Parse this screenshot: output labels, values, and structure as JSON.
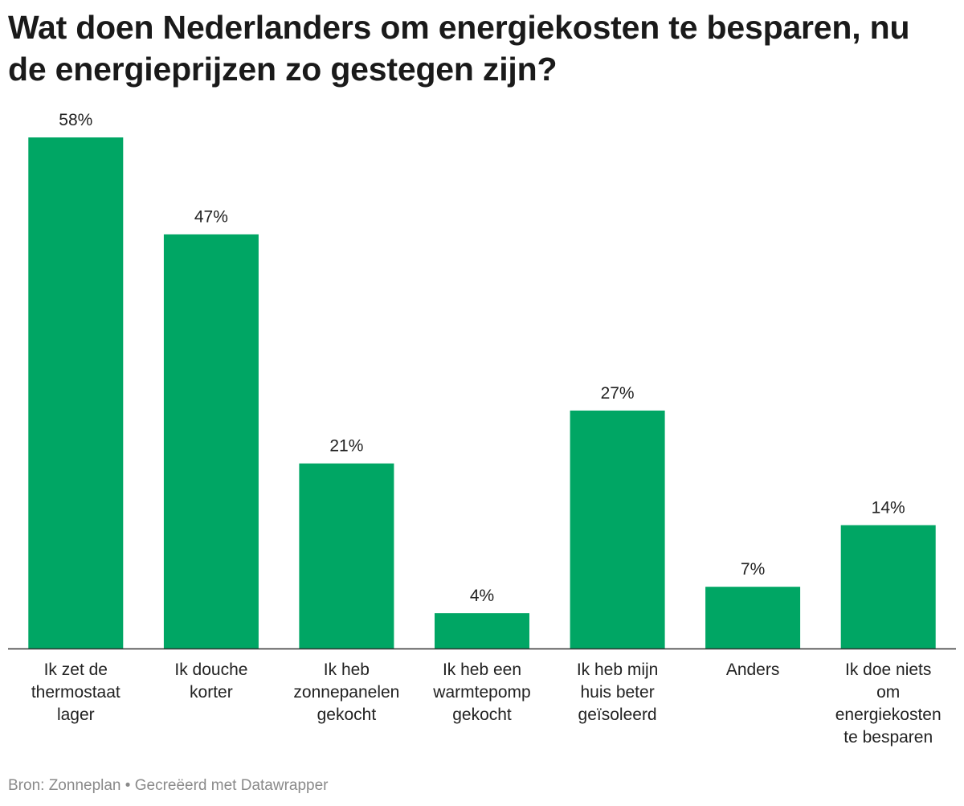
{
  "title": "Wat doen Nederlanders om energiekosten te besparen, nu de energieprijzen zo gestegen zijn?",
  "source": {
    "label": "Bron:",
    "name": "Zonneplan",
    "separator": "•",
    "credit": "Gecreëerd met Datawrapper"
  },
  "colors": {
    "bar": "#00a664",
    "baseline": "#333333"
  },
  "chart_data": {
    "type": "bar",
    "title": "Wat doen Nederlanders om energiekosten te besparen, nu de energieprijzen zo gestegen zijn?",
    "categories": [
      [
        "Ik zet de",
        "thermostaat",
        "lager"
      ],
      [
        "Ik douche",
        "korter"
      ],
      [
        "Ik heb",
        "zonnepanelen",
        "gekocht"
      ],
      [
        "Ik heb een",
        "warmtepomp",
        "gekocht"
      ],
      [
        "Ik heb mijn",
        "huis beter",
        "geïsoleerd"
      ],
      [
        "Anders"
      ],
      [
        "Ik doe niets",
        "om",
        "energiekosten",
        "te besparen"
      ]
    ],
    "values": [
      58,
      47,
      21,
      4,
      27,
      7,
      14
    ],
    "value_labels": [
      "58%",
      "47%",
      "21%",
      "4%",
      "27%",
      "7%",
      "14%"
    ],
    "unit": "%",
    "ylim": [
      0,
      58
    ],
    "grid": false,
    "legend": "none"
  }
}
